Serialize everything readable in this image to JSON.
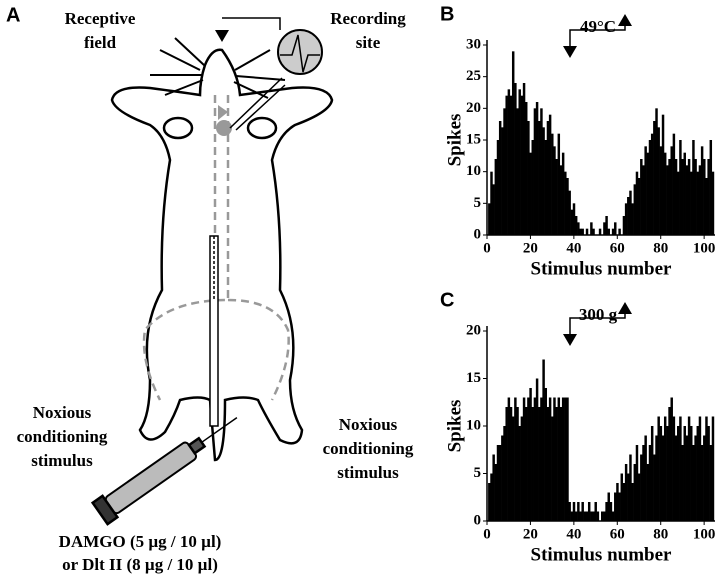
{
  "panel_a": {
    "label": "A",
    "receptive_field": [
      "Receptive",
      "field"
    ],
    "recording_site": [
      "Recording",
      "site"
    ],
    "stimulus_left": [
      "Noxious",
      "conditioning",
      "stimulus"
    ],
    "stimulus_right": [
      "Noxious",
      "conditioning",
      "stimulus"
    ],
    "drug": [
      "DAMGO (5 µg / 10 µl)",
      "or  Dlt II (8 µg / 10 µl)"
    ]
  },
  "chart_data": [
    {
      "type": "bar",
      "panel": "B",
      "annotation": "49°C",
      "xlabel": "Stimulus number",
      "ylabel": "Spikes",
      "color": "#000000",
      "x": [
        1,
        2,
        3,
        4,
        5,
        6,
        7,
        8,
        9,
        10,
        11,
        12,
        13,
        14,
        15,
        16,
        17,
        18,
        19,
        20,
        21,
        22,
        23,
        24,
        25,
        26,
        27,
        28,
        29,
        30,
        31,
        32,
        33,
        34,
        35,
        36,
        37,
        38,
        39,
        40,
        41,
        42,
        43,
        44,
        45,
        46,
        47,
        48,
        49,
        50,
        51,
        52,
        53,
        54,
        55,
        56,
        57,
        58,
        59,
        60,
        61,
        62,
        63,
        64,
        65,
        66,
        67,
        68,
        69,
        70,
        71,
        72,
        73,
        74,
        75,
        76,
        77,
        78,
        79,
        80,
        81,
        82,
        83,
        84,
        85,
        86,
        87,
        88,
        89,
        90,
        91,
        92,
        93,
        94,
        95,
        96,
        97,
        98,
        99,
        100,
        101,
        102,
        103,
        104
      ],
      "values": [
        5,
        10,
        8,
        12,
        15,
        18,
        17,
        20,
        22,
        23,
        22,
        29,
        24,
        20,
        23,
        22,
        24,
        21,
        18,
        13,
        15,
        20,
        21,
        18,
        20,
        17,
        15,
        18,
        19,
        16,
        14,
        12,
        16,
        11,
        13,
        10,
        9,
        7,
        4,
        5,
        3,
        2,
        1,
        1,
        0,
        1,
        0,
        2,
        1,
        0,
        0,
        1,
        0,
        2,
        3,
        1,
        0,
        1,
        2,
        0,
        1,
        0,
        3,
        5,
        6,
        7,
        5,
        8,
        10,
        9,
        12,
        11,
        14,
        13,
        15,
        16,
        18,
        20,
        17,
        14,
        19,
        13,
        11,
        12,
        14,
        16,
        12,
        10,
        15,
        12,
        13,
        11,
        12,
        10,
        15,
        12,
        10,
        11,
        14,
        12,
        9,
        12,
        15,
        10
      ],
      "xlim": [
        0,
        105
      ],
      "xticks": [
        0,
        20,
        40,
        60,
        80,
        100
      ],
      "ylim": [
        0,
        30
      ],
      "yticks": [
        0,
        5,
        10,
        15,
        20,
        25,
        30
      ]
    },
    {
      "type": "bar",
      "panel": "C",
      "annotation": "300 g",
      "xlabel": "Stimulus number",
      "ylabel": "Spikes",
      "color": "#000000",
      "x": [
        1,
        2,
        3,
        4,
        5,
        6,
        7,
        8,
        9,
        10,
        11,
        12,
        13,
        14,
        15,
        16,
        17,
        18,
        19,
        20,
        21,
        22,
        23,
        24,
        25,
        26,
        27,
        28,
        29,
        30,
        31,
        32,
        33,
        34,
        35,
        36,
        37,
        38,
        39,
        40,
        41,
        42,
        43,
        44,
        45,
        46,
        47,
        48,
        49,
        50,
        51,
        52,
        53,
        54,
        55,
        56,
        57,
        58,
        59,
        60,
        61,
        62,
        63,
        64,
        65,
        66,
        67,
        68,
        69,
        70,
        71,
        72,
        73,
        74,
        75,
        76,
        77,
        78,
        79,
        80,
        81,
        82,
        83,
        84,
        85,
        86,
        87,
        88,
        89,
        90,
        91,
        92,
        93,
        94,
        95,
        96,
        97,
        98,
        99,
        100,
        101,
        102,
        103,
        104
      ],
      "values": [
        4,
        5,
        7,
        6,
        8,
        8,
        9,
        10,
        12,
        13,
        12,
        11,
        13,
        12,
        10,
        11,
        13,
        12,
        13,
        14,
        12,
        13,
        15,
        12,
        13,
        17,
        14,
        12,
        13,
        11,
        13,
        12,
        13,
        12,
        13,
        13,
        13,
        2,
        1,
        2,
        1,
        2,
        1,
        2,
        1,
        1,
        2,
        1,
        1,
        2,
        1,
        0,
        1,
        1,
        2,
        3,
        2,
        1,
        3,
        4,
        3,
        5,
        4,
        6,
        5,
        7,
        4,
        6,
        8,
        5,
        7,
        8,
        9,
        6,
        8,
        10,
        7,
        9,
        11,
        10,
        9,
        11,
        10,
        12,
        13,
        11,
        9,
        10,
        11,
        8,
        10,
        9,
        11,
        10,
        8,
        9,
        10,
        11,
        8,
        9,
        11,
        10,
        8,
        11
      ],
      "xlim": [
        0,
        105
      ],
      "xticks": [
        0,
        20,
        40,
        60,
        80,
        100
      ],
      "ylim": [
        0,
        20
      ],
      "yticks": [
        0,
        5,
        10,
        15,
        20
      ]
    }
  ]
}
